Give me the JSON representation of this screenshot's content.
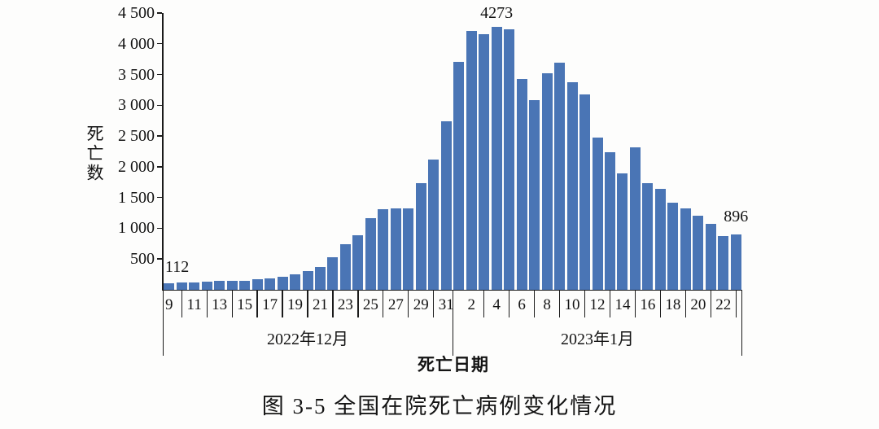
{
  "figure": {
    "caption": "图 3-5 全国在院死亡病例变化情况",
    "y_axis_title": "死亡数",
    "x_axis_title": "死亡日期",
    "month_labels": {
      "december": "2022年12月",
      "january": "2023年1月"
    },
    "annotations": {
      "first_bar": "112",
      "peak_bar": "4273",
      "last_bar": "896"
    }
  },
  "colors": {
    "bar": "#4a75b5",
    "axis": "#1b1b1b",
    "text": "#141414",
    "background": "#fdfdfc"
  },
  "y_axis": {
    "tick_labels": [
      "500",
      "1 000",
      "1 500",
      "2 000",
      "2 500",
      "3 000",
      "3 500",
      "4 000",
      "4 500"
    ],
    "tick_values": [
      500,
      1000,
      1500,
      2000,
      2500,
      3000,
      3500,
      4000,
      4500
    ]
  },
  "x_axis": {
    "december_tick_labels": [
      "9",
      "11",
      "13",
      "15",
      "17",
      "19",
      "21",
      "23",
      "25",
      "27",
      "29",
      "31"
    ],
    "january_tick_labels": [
      "2",
      "4",
      "6",
      "8",
      "10",
      "12",
      "14",
      "16",
      "18",
      "20",
      "22"
    ]
  },
  "chart_data": {
    "type": "bar",
    "title": "图 3-5 全国在院死亡病例变化情况",
    "xlabel": "死亡日期",
    "ylabel": "死亡数",
    "ylim": [
      0,
      4500
    ],
    "grid": false,
    "legend": "none",
    "bar_color": "#4a75b5",
    "x": [
      "12-09",
      "12-10",
      "12-11",
      "12-12",
      "12-13",
      "12-14",
      "12-15",
      "12-16",
      "12-17",
      "12-18",
      "12-19",
      "12-20",
      "12-21",
      "12-22",
      "12-23",
      "12-24",
      "12-25",
      "12-26",
      "12-27",
      "12-28",
      "12-29",
      "12-30",
      "12-31",
      "01-01",
      "01-02",
      "01-03",
      "01-04",
      "01-05",
      "01-06",
      "01-07",
      "01-08",
      "01-09",
      "01-10",
      "01-11",
      "01-12",
      "01-13",
      "01-14",
      "01-15",
      "01-16",
      "01-17",
      "01-18",
      "01-19",
      "01-20",
      "01-21",
      "01-22",
      "01-23"
    ],
    "values": [
      112,
      125,
      125,
      135,
      145,
      140,
      150,
      170,
      185,
      215,
      245,
      300,
      370,
      530,
      740,
      890,
      1160,
      1310,
      1330,
      1320,
      1730,
      2115,
      2735,
      3700,
      4215,
      4155,
      4273,
      4240,
      3430,
      3080,
      3520,
      3690,
      3370,
      3175,
      2470,
      2240,
      1890,
      2310,
      1730,
      1635,
      1420,
      1330,
      1210,
      1070,
      880,
      896
    ],
    "annotated_points": [
      {
        "x": "12-09",
        "label": "112"
      },
      {
        "x": "01-04",
        "label": "4273"
      },
      {
        "x": "01-23",
        "label": "896"
      }
    ]
  }
}
